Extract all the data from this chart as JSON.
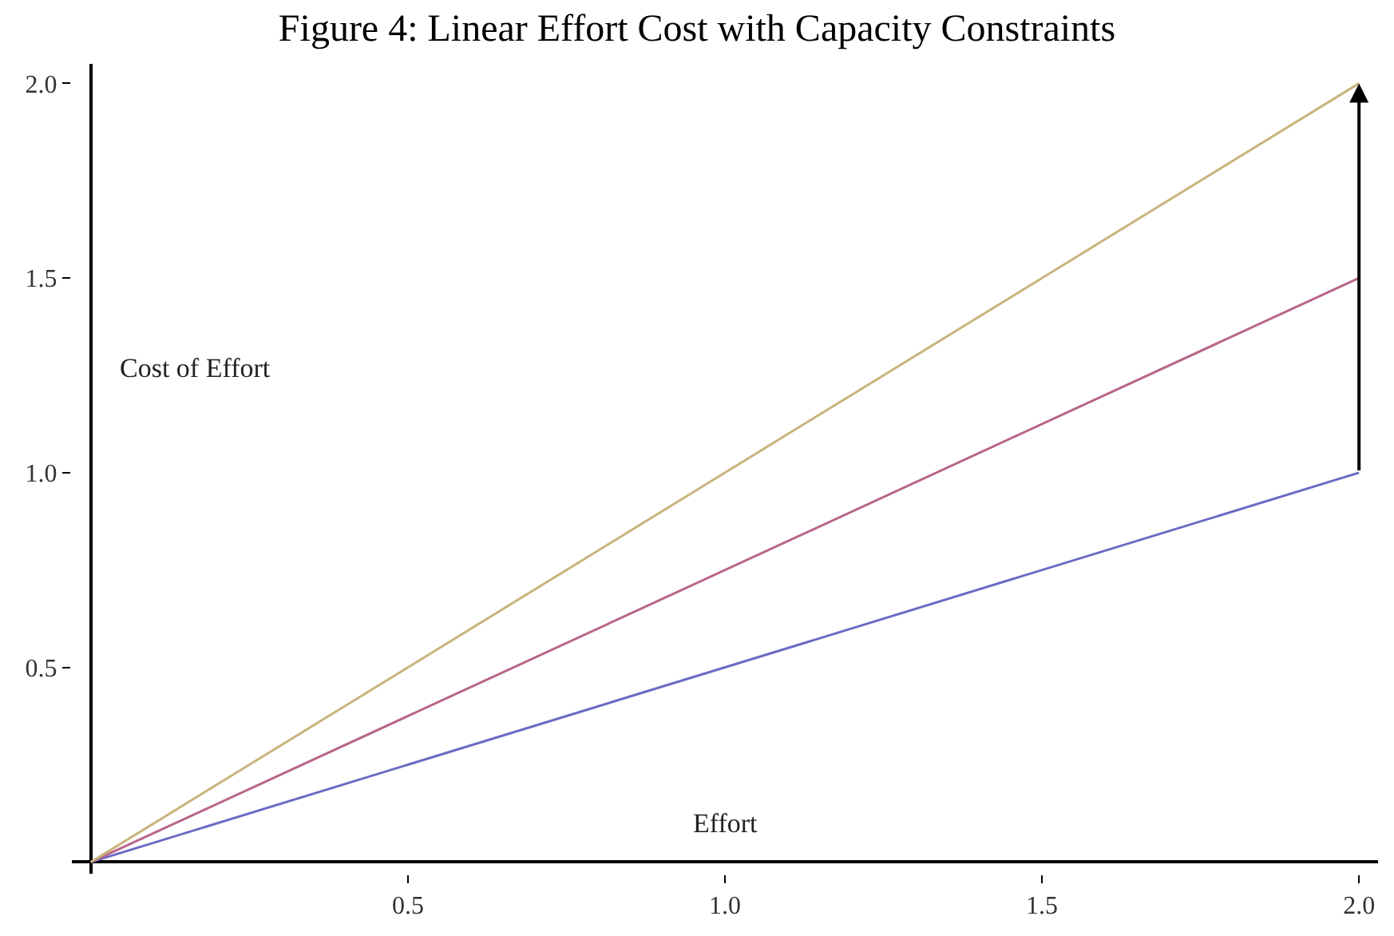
{
  "chart_data": {
    "type": "line",
    "title": "Figure 4: Linear Effort Cost with Capacity Constraints",
    "xlabel": "Effort",
    "ylabel": "Cost of Effort",
    "x": [
      0,
      2
    ],
    "series": [
      {
        "color": "#6b6bc4",
        "values": [
          0,
          1
        ]
      },
      {
        "color": "#b8668a",
        "values": [
          0,
          1.5
        ]
      },
      {
        "color": "#c8b47c",
        "values": [
          0,
          2
        ]
      }
    ],
    "xlim": [
      -0.03,
      2.03
    ],
    "ylim": [
      -0.03,
      2.05
    ],
    "xticks": [
      0.5,
      {
        "value": 1,
        "label": "1.0"
      },
      1.5,
      {
        "value": 2,
        "label": "2.0"
      }
    ],
    "yticks": [
      0.5,
      {
        "value": 1,
        "label": "1.0"
      },
      1.5,
      {
        "value": 2,
        "label": "2.0"
      }
    ],
    "marker": "none",
    "line_style": "solid"
  }
}
